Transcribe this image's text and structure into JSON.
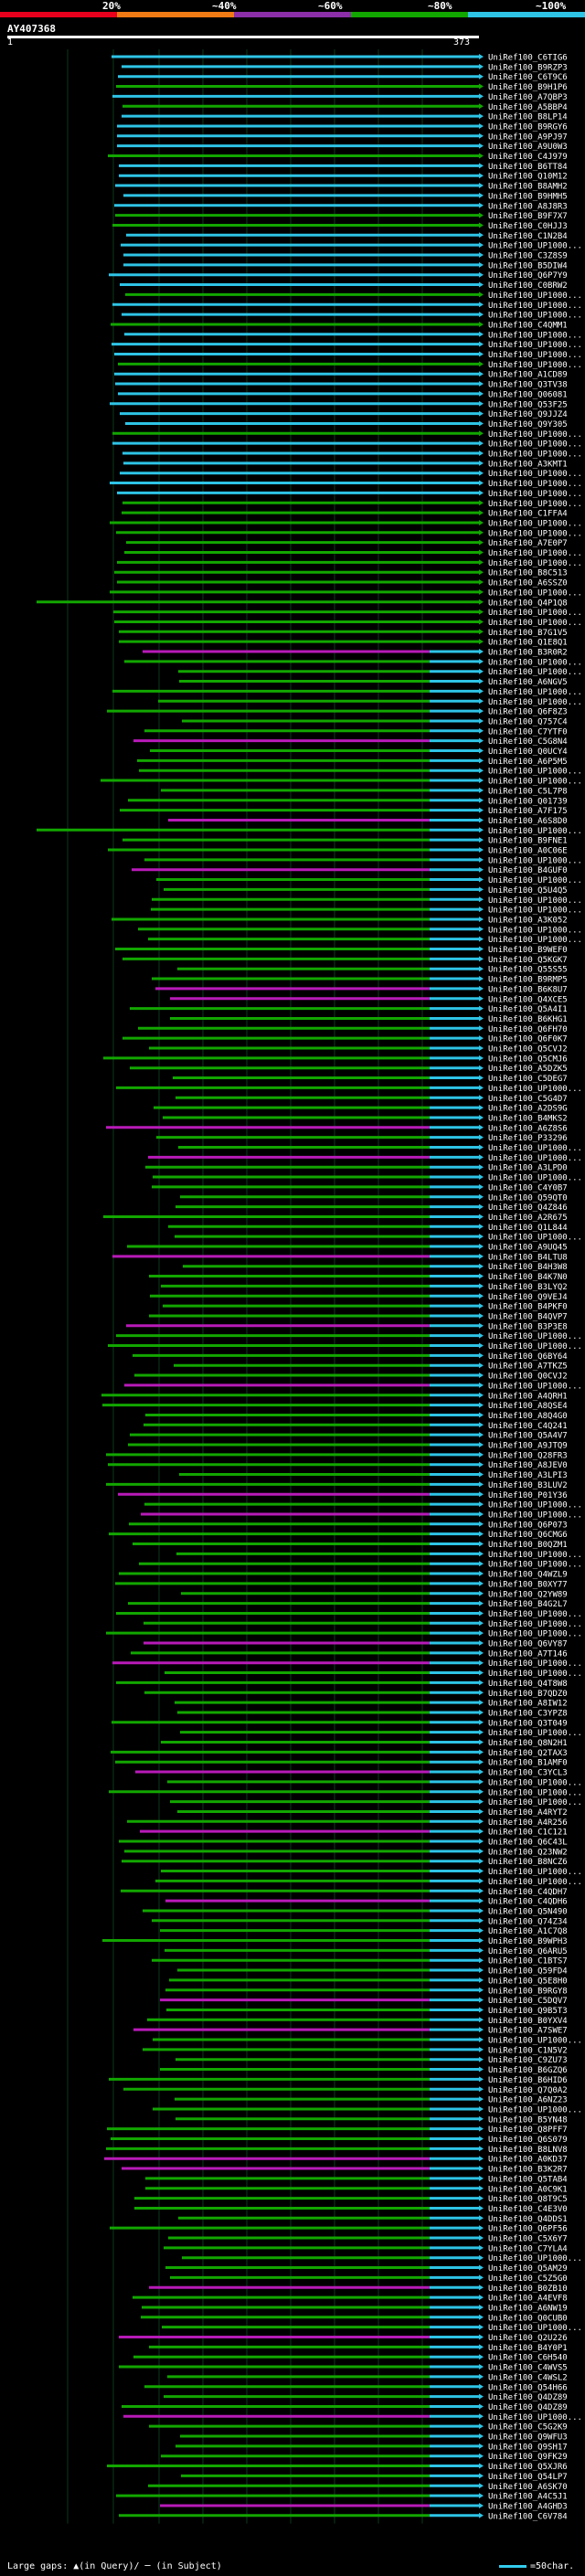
{
  "legend": {
    "labels": [
      "20%",
      "~40%",
      "~60%",
      "~80%",
      "~100%"
    ],
    "colors": [
      "#e8001c",
      "#f07a14",
      "#8c2fa8",
      "#12a600",
      "#2ec4e6"
    ]
  },
  "query": {
    "name": "AY407368",
    "start": "1",
    "end": "373"
  },
  "hits": [
    "UniRef100_C6TIG6",
    "UniRef100_B9RZP3",
    "UniRef100_C6T9C6",
    "UniRef100_B9H1P6",
    "UniRef100_A7QBP3",
    "UniRef100_A5BBP4",
    "UniRef100_B8LP14",
    "UniRef100_B9RGY6",
    "UniRef100_A9PJ97",
    "UniRef100_A9U0W3",
    "UniRef100_C4J979",
    "UniRef100_B6TT84",
    "UniRef100_Q10M12",
    "UniRef100_B8AMH2",
    "UniRef100_B9HMH5",
    "UniRef100_A8J8R3",
    "UniRef100_B9F7X7",
    "UniRef100_C0HJJ3",
    "UniRef100_C1N2B4",
    "UniRef100_UP1000...",
    "UniRef100_C3Z8S9",
    "UniRef100_B5DIW4",
    "UniRef100_Q6P7Y9",
    "UniRef100_C0BRW2",
    "UniRef100_UP1000...",
    "UniRef100_UP1000...",
    "UniRef100_UP1000...",
    "UniRef100_C4QMM1",
    "UniRef100_UP1000...",
    "UniRef100_UP1000...",
    "UniRef100_UP1000...",
    "UniRef100_UP1000...",
    "UniRef100_A1CD89",
    "UniRef100_Q3TV38",
    "UniRef100_Q06081",
    "UniRef100_Q53F25",
    "UniRef100_Q9JJZ4",
    "UniRef100_Q9Y305",
    "UniRef100_UP1000...",
    "UniRef100_UP1000...",
    "UniRef100_UP1000...",
    "UniRef100_A3KMT1",
    "UniRef100_UP1000...",
    "UniRef100_UP1000...",
    "UniRef100_UP1000...",
    "UniRef100_UP1000...",
    "UniRef100_C1FFA4",
    "UniRef100_UP1000...",
    "UniRef100_UP1000...",
    "UniRef100_A7E0P7",
    "UniRef100_UP1000...",
    "UniRef100_UP1000...",
    "UniRef100_B8C513",
    "UniRef100_A6SSZ0",
    "UniRef100_UP1000...",
    "UniRef100_Q4P1Q8",
    "UniRef100_UP1000...",
    "UniRef100_UP1000...",
    "UniRef100_B7G1V5",
    "UniRef100_Q1E8Q1",
    "UniRef100_B3R0R2",
    "UniRef100_UP1000...",
    "UniRef100_UP1000...",
    "UniRef100_A6NGV5",
    "UniRef100_UP1000...",
    "UniRef100_UP1000...",
    "UniRef100_Q6F8Z3",
    "UniRef100_Q757C4",
    "UniRef100_C7YTF0",
    "UniRef100_C5G8N4",
    "UniRef100_Q0UCY4",
    "UniRef100_A6P5M5",
    "UniRef100_UP1000...",
    "UniRef100_UP1000...",
    "UniRef100_C5L7P8",
    "UniRef100_Q01739",
    "UniRef100_A7F175",
    "UniRef100_A6S8D0",
    "UniRef100_UP1000...",
    "UniRef100_B9FNE1",
    "UniRef100_A0C06E",
    "UniRef100_UP1000...",
    "UniRef100_B4GUF0",
    "UniRef100_UP1000...",
    "UniRef100_Q5U4Q5",
    "UniRef100_UP1000...",
    "UniRef100_UP1000...",
    "UniRef100_A3K052",
    "UniRef100_UP1000...",
    "UniRef100_UP1000...",
    "UniRef100_B9WEF0",
    "UniRef100_Q5KGK7",
    "UniRef100_Q55S55",
    "UniRef100_B9RMP5",
    "UniRef100_B6K8U7",
    "UniRef100_Q4XCE5",
    "UniRef100_Q5A4I1",
    "UniRef100_B6KHG1",
    "UniRef100_Q6FH70",
    "UniRef100_Q6F0K7",
    "UniRef100_Q5CVJ2",
    "UniRef100_Q5CMJ6",
    "UniRef100_A5DZK5",
    "UniRef100_C5DEG7",
    "UniRef100_UP1000...",
    "UniRef100_C5G4D7",
    "UniRef100_A2DS9G",
    "UniRef100_B4MKS2",
    "UniRef100_A6Z8S6",
    "UniRef100_P33296",
    "UniRef100_UP1000...",
    "UniRef100_UP1000...",
    "UniRef100_A3LPD0",
    "UniRef100_UP1000...",
    "UniRef100_C4Y0B7",
    "UniRef100_Q59QT0",
    "UniRef100_Q4Z846",
    "UniRef100_A2R675",
    "UniRef100_Q1L844",
    "UniRef100_UP1000...",
    "UniRef100_A9UQ45",
    "UniRef100_B4LTU8",
    "UniRef100_B4H3W8",
    "UniRef100_B4K7N0",
    "UniRef100_B3LYQ2",
    "UniRef100_Q9VEJ4",
    "UniRef100_B4PKF0",
    "UniRef100_B4QVP7",
    "UniRef100_B3P3E8",
    "UniRef100_UP1000...",
    "UniRef100_UP1000...",
    "UniRef100_Q6BY64",
    "UniRef100_A7TKZ5",
    "UniRef100_Q0CVJ2",
    "UniRef100_UP1000...",
    "UniRef100_A4QRH1",
    "UniRef100_A8QSE4",
    "UniRef100_A8Q4G0",
    "UniRef100_C4Q241",
    "UniRef100_Q5A4V7",
    "UniRef100_A9JTQ9",
    "UniRef100_Q28FR3",
    "UniRef100_A8JEV0",
    "UniRef100_A3LPI3",
    "UniRef100_B3LUV2",
    "UniRef100_P01Y36",
    "UniRef100_UP1000...",
    "UniRef100_UP1000...",
    "UniRef100_Q6P073",
    "UniRef100_Q6CMG6",
    "UniRef100_B0QZM1",
    "UniRef100_UP1000...",
    "UniRef100_UP1000...",
    "UniRef100_Q4WZL9",
    "UniRef100_B0XY77",
    "UniRef100_Q2YW89",
    "UniRef100_B4G2L7",
    "UniRef100_UP1000...",
    "UniRef100_UP1000...",
    "UniRef100_UP1000...",
    "UniRef100_Q6VY87",
    "UniRef100_A7T146",
    "UniRef100_UP1000...",
    "UniRef100_UP1000...",
    "UniRef100_Q4T8W8",
    "UniRef100_B7QDZ0",
    "UniRef100_A8IW12",
    "UniRef100_C3YPZ8",
    "UniRef100_Q3T049",
    "UniRef100_UP1000...",
    "UniRef100_Q8N2H1",
    "UniRef100_Q2TAX3",
    "UniRef100_B1AMF0",
    "UniRef100_C3YCL3",
    "UniRef100_UP1000...",
    "UniRef100_UP1000...",
    "UniRef100_UP1000...",
    "UniRef100_A4RYT2",
    "UniRef100_A4R256",
    "UniRef100_C1C121",
    "UniRef100_Q6C43L",
    "UniRef100_Q23NW2",
    "UniRef100_B8NCZ6",
    "UniRef100_UP1000...",
    "UniRef100_UP1000...",
    "UniRef100_C4QDH7",
    "UniRef100_C4QDH6",
    "UniRef100_Q5N490",
    "UniRef100_Q74Z34",
    "UniRef100_A1C7Q8",
    "UniRef100_B9WPH3",
    "UniRef100_Q6ARU5",
    "UniRef100_C1BTS7",
    "UniRef100_Q59FD4",
    "UniRef100_Q5E8H0",
    "UniRef100_B9RGY8",
    "UniRef100_C5DQV7",
    "UniRef100_Q9B5T3",
    "UniRef100_B0YXV4",
    "UniRef100_A7SWE7",
    "UniRef100_UP1000...",
    "UniRef100_C1N5V2",
    "UniRef100_C9ZU73",
    "UniRef100_B6GZQ6",
    "UniRef100_B6HID6",
    "UniRef100_Q7Q0A2",
    "UniRef100_A6NZ23",
    "UniRef100_UP1000...",
    "UniRef100_B5YN48",
    "UniRef100_Q8PFF7",
    "UniRef100_Q6S079",
    "UniRef100_B8LNV8",
    "UniRef100_A0KD37",
    "UniRef100_B3K2R7",
    "UniRef100_Q5TAB4",
    "UniRef100_A0C9K1",
    "UniRef100_Q8T9C5",
    "UniRef100_C4E3V0",
    "UniRef100_Q4DDS1",
    "UniRef100_Q6PF56",
    "UniRef100_C5X6Y7",
    "UniRef100_C7YLA4",
    "UniRef100_UP1000...",
    "UniRef100_Q5AM29",
    "UniRef100_C5Z5G0",
    "UniRef100_B0ZB10",
    "UniRef100_A4EVF8",
    "UniRef100_A6NW19",
    "UniRef100_Q0CUB0",
    "UniRef100_UP1000...",
    "UniRef100_Q2U226",
    "UniRef100_B4Y0P1",
    "UniRef100_C6H540",
    "UniRef100_C4WVS5",
    "UniRef100_C4WSL2",
    "UniRef100_Q54H66",
    "UniRef100_Q4DZ89",
    "UniRef100_Q4DZ89",
    "UniRef100_UP1000...",
    "UniRef100_C5G2K9",
    "UniRef100_Q9WFU3",
    "UniRef100_Q9SH17",
    "UniRef100_Q9FK29",
    "UniRef100_Q5XJR6",
    "UniRef100_Q54LP7",
    "UniRef100_A6SK70",
    "UniRef100_A4C5J1",
    "UniRef100_A4GHD3",
    "UniRef100_C6V784"
  ],
  "footer": {
    "gap_note": "Large gaps: ▲(in Query)/ ─ (in Subject)",
    "scale_label": "=50char."
  }
}
